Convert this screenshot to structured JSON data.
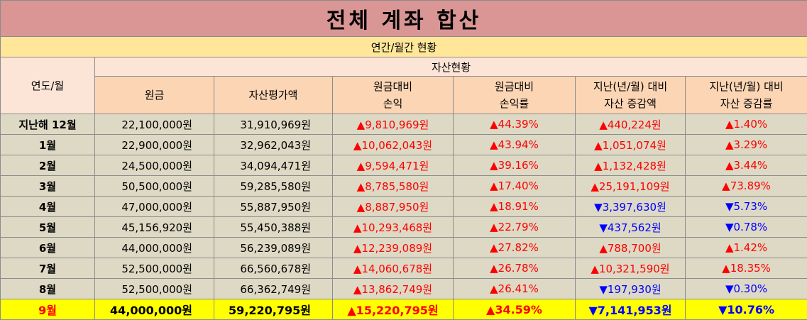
{
  "title": "전체 계좌 합산",
  "subtitle": "연간/월간 현황",
  "headers": {
    "year_month": "연도/월",
    "asset_group": "자산현황",
    "principal": "원금",
    "asset_value": "자산평가액",
    "pnl_line1": "원금대비",
    "pnl_line2": "손익",
    "pnl_rate_line1": "원금대비",
    "pnl_rate_line2": "손익률",
    "change_line1": "지난(년/월) 대비",
    "change_line2": "자산 증감액",
    "change_rate_line1": "지난(년/월) 대비",
    "change_rate_line2": "자산 증감률"
  },
  "rows": [
    {
      "label": "지난해 12월",
      "principal": "22,100,000원",
      "asset_value": "31,910,969원",
      "pnl": "▲9,810,969원",
      "pnl_rate": "▲44.39%",
      "change": "▲440,224원",
      "change_rate": "▲1.40%",
      "change_dir": "up",
      "pnl_dir": "up",
      "current": false
    },
    {
      "label": "1월",
      "principal": "22,900,000원",
      "asset_value": "32,962,043원",
      "pnl": "▲10,062,043원",
      "pnl_rate": "▲43.94%",
      "change": "▲1,051,074원",
      "change_rate": "▲3.29%",
      "change_dir": "up",
      "pnl_dir": "up",
      "current": false
    },
    {
      "label": "2월",
      "principal": "24,500,000원",
      "asset_value": "34,094,471원",
      "pnl": "▲9,594,471원",
      "pnl_rate": "▲39.16%",
      "change": "▲1,132,428원",
      "change_rate": "▲3.44%",
      "change_dir": "up",
      "pnl_dir": "up",
      "current": false
    },
    {
      "label": "3월",
      "principal": "50,500,000원",
      "asset_value": "59,285,580원",
      "pnl": "▲8,785,580원",
      "pnl_rate": "▲17.40%",
      "change": "▲25,191,109원",
      "change_rate": "▲73.89%",
      "change_dir": "up",
      "pnl_dir": "up",
      "current": false
    },
    {
      "label": "4월",
      "principal": "47,000,000원",
      "asset_value": "55,887,950원",
      "pnl": "▲8,887,950원",
      "pnl_rate": "▲18.91%",
      "change": "▼3,397,630원",
      "change_rate": "▼5.73%",
      "change_dir": "down",
      "pnl_dir": "up",
      "current": false
    },
    {
      "label": "5월",
      "principal": "45,156,920원",
      "asset_value": "55,450,388원",
      "pnl": "▲10,293,468원",
      "pnl_rate": "▲22.79%",
      "change": "▼437,562원",
      "change_rate": "▼0.78%",
      "change_dir": "down",
      "pnl_dir": "up",
      "current": false
    },
    {
      "label": "6월",
      "principal": "44,000,000원",
      "asset_value": "56,239,089원",
      "pnl": "▲12,239,089원",
      "pnl_rate": "▲27.82%",
      "change": "▲788,700원",
      "change_rate": "▲1.42%",
      "change_dir": "up",
      "pnl_dir": "up",
      "current": false
    },
    {
      "label": "7월",
      "principal": "52,500,000원",
      "asset_value": "66,560,678원",
      "pnl": "▲14,060,678원",
      "pnl_rate": "▲26.78%",
      "change": "▲10,321,590원",
      "change_rate": "▲18.35%",
      "change_dir": "up",
      "pnl_dir": "up",
      "current": false
    },
    {
      "label": "8월",
      "principal": "52,500,000원",
      "asset_value": "66,362,749원",
      "pnl": "▲13,862,749원",
      "pnl_rate": "▲26.41%",
      "change": "▼197,930원",
      "change_rate": "▼0.30%",
      "change_dir": "down",
      "pnl_dir": "up",
      "current": false
    },
    {
      "label": "9월",
      "principal": "44,000,000원",
      "asset_value": "59,220,795원",
      "pnl": "▲15,220,795원",
      "pnl_rate": "▲34.59%",
      "change": "▼7,141,953원",
      "change_rate": "▼10.76%",
      "change_dir": "down",
      "pnl_dir": "up",
      "current": true
    }
  ],
  "colors": {
    "title_bg": "#da9694",
    "subtitle_bg": "#ffe699",
    "header_bg": "#fcd5b4",
    "row_bg": "#ddd9c4",
    "current_row_bg": "#ffff00",
    "up": "#ff0000",
    "down": "#0000ff"
  }
}
